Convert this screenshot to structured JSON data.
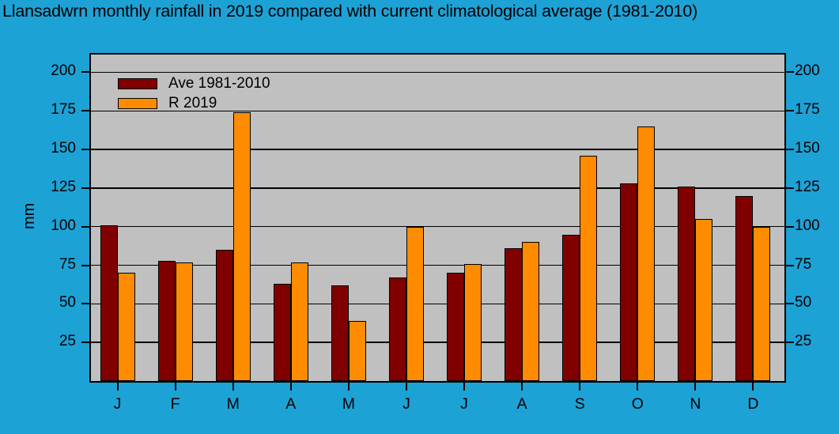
{
  "title": "Llansadwrn monthly rainfall in 2019 compared with current climatological average (1981-2010)",
  "chart_data": {
    "type": "bar",
    "title": "Llansadwrn monthly rainfall in 2019 compared with current climatological average (1981-2010)",
    "xlabel": "",
    "ylabel": "mm",
    "categories": [
      "J",
      "F",
      "M",
      "A",
      "M",
      "J",
      "J",
      "A",
      "S",
      "O",
      "N",
      "D"
    ],
    "series": [
      {
        "name": "Ave 1981-2010",
        "color": "#800000",
        "values": [
          101,
          78,
          85,
          63,
          62,
          67,
          70,
          86,
          95,
          128,
          126,
          120
        ]
      },
      {
        "name": "R 2019",
        "color": "#FF8C00",
        "values": [
          70,
          77,
          174,
          77,
          39,
          100,
          76,
          90,
          146,
          165,
          105,
          100
        ]
      }
    ],
    "ylim": [
      0,
      211.5
    ],
    "yticks": [
      25,
      50,
      75,
      100,
      125,
      150,
      175,
      200
    ],
    "grid": true,
    "legend_position": "top-left-inside",
    "y_axis_mirrored_right": true,
    "colors": {
      "page_background": "#1DA2D6",
      "plot_background": "#C0C0C0",
      "gridline": "#000000",
      "axis": "#000000",
      "bar_border": "#000000",
      "text": "#000000"
    }
  }
}
